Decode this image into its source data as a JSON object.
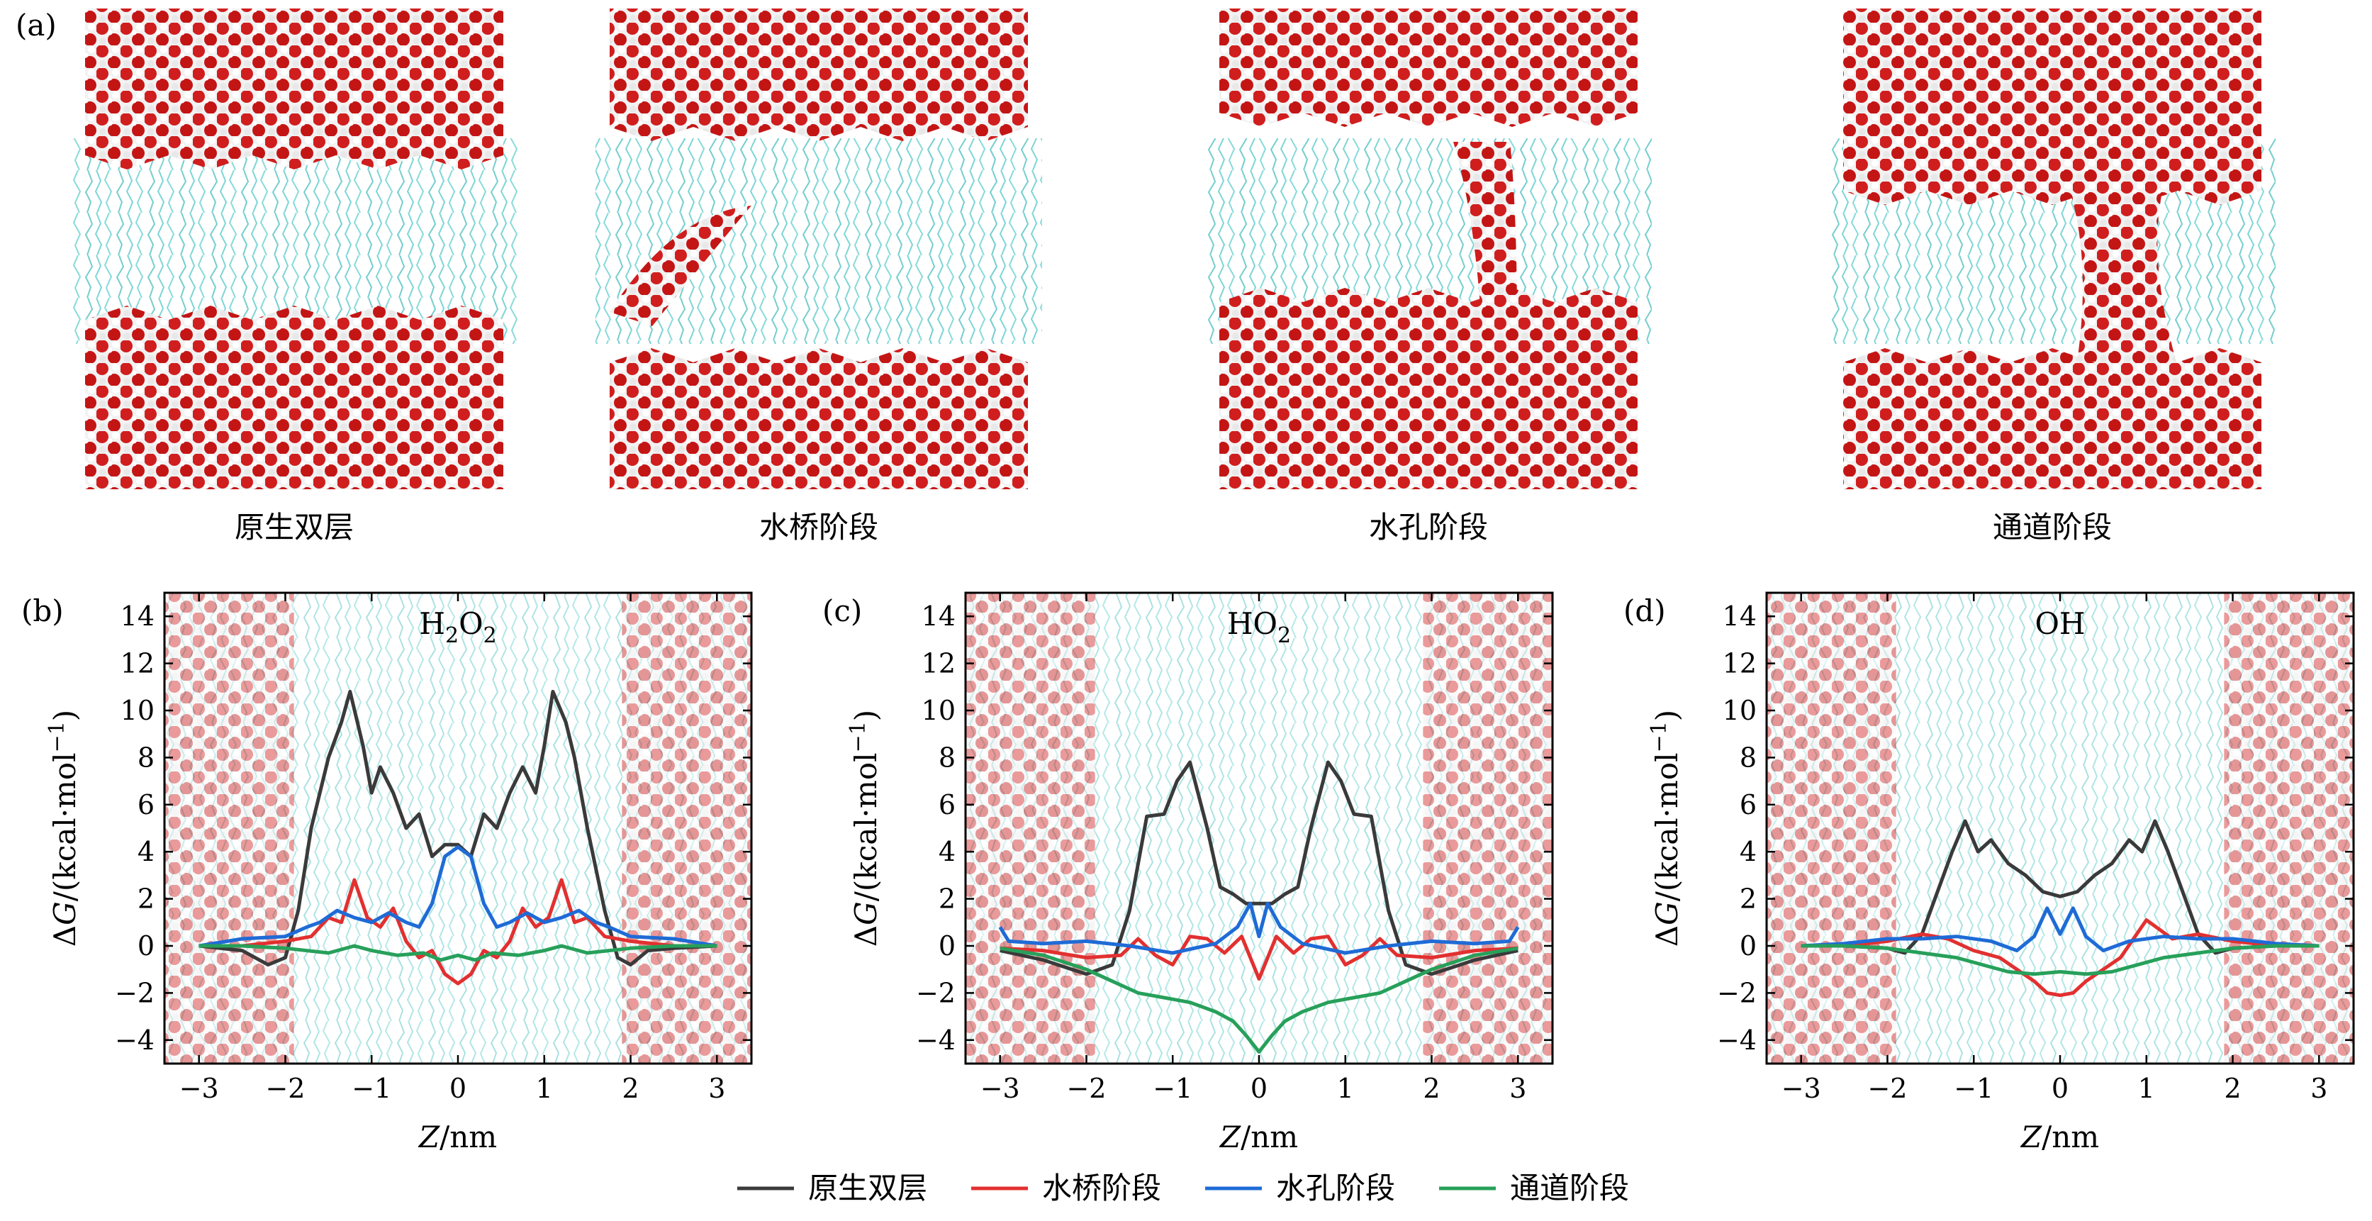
{
  "panel_letters": [
    "(a)",
    "(b)",
    "(c)",
    "(d)"
  ],
  "snapshots": {
    "captions": [
      "原生双层",
      "水桥阶段",
      "水孔阶段",
      "通道阶段"
    ],
    "stages": [
      "native",
      "bridge",
      "pore",
      "channel"
    ],
    "colors": {
      "water_oxygen": "#d01e1e",
      "water_hydrogen": "#f2f2f2",
      "lipid_tails": "#6fd0d0"
    }
  },
  "legend": {
    "placement": "bottom-center",
    "entries": [
      {
        "label": "原生双层",
        "color": "#3a3a3a"
      },
      {
        "label": "水桥阶段",
        "color": "#e23030"
      },
      {
        "label": "水孔阶段",
        "color": "#1f6bd6"
      },
      {
        "label": "通道阶段",
        "color": "#27a05a"
      }
    ]
  },
  "chart_data": [
    {
      "type": "line",
      "panel": "(b)",
      "title": "H2O2",
      "xlabel": "Z/nm",
      "ylabel": "ΔG/(kcal·mol−1)",
      "xlim": [
        -3.4,
        3.4
      ],
      "ylim": [
        -5,
        15
      ],
      "xticks": [
        -3,
        -2,
        -1,
        0,
        1,
        2,
        3
      ],
      "yticks": [
        -4,
        -2,
        0,
        2,
        4,
        6,
        8,
        10,
        12,
        14
      ],
      "xticklabels": [
        "−3",
        "−2",
        "−1",
        "0",
        "1",
        "2",
        "3"
      ],
      "yticklabels": [
        "−4",
        "−2",
        "0",
        "2",
        "4",
        "6",
        "8",
        "10",
        "12",
        "14"
      ],
      "grid": false,
      "series": [
        {
          "name": "原生双层",
          "color": "#3a3a3a",
          "x": [
            -3.0,
            -2.5,
            -2.2,
            -2.0,
            -1.85,
            -1.7,
            -1.5,
            -1.35,
            -1.25,
            -1.1,
            -1.0,
            -0.9,
            -0.75,
            -0.6,
            -0.45,
            -0.3,
            -0.15,
            0.0,
            0.15,
            0.3,
            0.45,
            0.6,
            0.75,
            0.9,
            1.0,
            1.1,
            1.25,
            1.35,
            1.5,
            1.7,
            1.85,
            2.0,
            2.2,
            2.5,
            3.0
          ],
          "y": [
            0.0,
            -0.2,
            -0.8,
            -0.5,
            1.5,
            5.0,
            8.0,
            9.5,
            10.8,
            8.5,
            6.5,
            7.6,
            6.5,
            5.0,
            5.6,
            3.8,
            4.3,
            4.3,
            3.8,
            5.6,
            5.0,
            6.5,
            7.6,
            6.5,
            8.5,
            10.8,
            9.5,
            8.0,
            5.0,
            1.5,
            -0.5,
            -0.8,
            -0.2,
            -0.1,
            0.0
          ]
        },
        {
          "name": "水桥阶段",
          "color": "#e23030",
          "x": [
            -3.0,
            -2.5,
            -2.0,
            -1.7,
            -1.5,
            -1.35,
            -1.2,
            -1.05,
            -0.9,
            -0.75,
            -0.6,
            -0.45,
            -0.3,
            -0.15,
            0.0,
            0.15,
            0.3,
            0.45,
            0.6,
            0.75,
            0.9,
            1.05,
            1.2,
            1.35,
            1.5,
            1.7,
            2.0,
            2.5,
            3.0
          ],
          "y": [
            0.0,
            0.0,
            0.2,
            0.4,
            1.2,
            1.0,
            2.8,
            1.2,
            0.8,
            1.6,
            0.2,
            -0.5,
            -0.2,
            -1.2,
            -1.6,
            -1.2,
            -0.2,
            -0.5,
            0.2,
            1.6,
            0.8,
            1.2,
            2.8,
            1.0,
            1.2,
            0.4,
            0.2,
            0.0,
            0.0
          ]
        },
        {
          "name": "水孔阶段",
          "color": "#1f6bd6",
          "x": [
            -3.0,
            -2.5,
            -2.0,
            -1.75,
            -1.6,
            -1.4,
            -1.2,
            -1.0,
            -0.8,
            -0.6,
            -0.45,
            -0.3,
            -0.15,
            0.0,
            0.15,
            0.3,
            0.45,
            0.6,
            0.8,
            1.0,
            1.2,
            1.4,
            1.6,
            1.75,
            2.0,
            2.5,
            3.0
          ],
          "y": [
            0.0,
            0.3,
            0.4,
            0.8,
            1.0,
            1.5,
            1.2,
            1.0,
            1.4,
            1.0,
            0.8,
            1.8,
            3.8,
            4.2,
            3.8,
            1.8,
            0.8,
            1.0,
            1.4,
            1.0,
            1.2,
            1.5,
            1.0,
            0.8,
            0.4,
            0.3,
            0.0
          ]
        },
        {
          "name": "通道阶段",
          "color": "#27a05a",
          "x": [
            -3.0,
            -2.5,
            -2.0,
            -1.5,
            -1.2,
            -1.0,
            -0.7,
            -0.4,
            -0.2,
            0.0,
            0.2,
            0.4,
            0.7,
            1.0,
            1.2,
            1.5,
            2.0,
            2.5,
            3.0
          ],
          "y": [
            0.0,
            0.0,
            -0.1,
            -0.3,
            0.0,
            -0.2,
            -0.4,
            -0.3,
            -0.6,
            -0.4,
            -0.6,
            -0.3,
            -0.4,
            -0.2,
            0.0,
            -0.3,
            -0.1,
            0.0,
            0.0
          ]
        }
      ]
    },
    {
      "type": "line",
      "panel": "(c)",
      "title": "HO2",
      "xlabel": "Z/nm",
      "ylabel": "ΔG/(kcal·mol−1)",
      "xlim": [
        -3.4,
        3.4
      ],
      "ylim": [
        -5,
        15
      ],
      "xticks": [
        -3,
        -2,
        -1,
        0,
        1,
        2,
        3
      ],
      "yticks": [
        -4,
        -2,
        0,
        2,
        4,
        6,
        8,
        10,
        12,
        14
      ],
      "xticklabels": [
        "−3",
        "−2",
        "−1",
        "0",
        "1",
        "2",
        "3"
      ],
      "yticklabels": [
        "−4",
        "−2",
        "0",
        "2",
        "4",
        "6",
        "8",
        "10",
        "12",
        "14"
      ],
      "grid": false,
      "series": [
        {
          "name": "原生双层",
          "color": "#3a3a3a",
          "x": [
            -3.0,
            -2.5,
            -2.0,
            -1.7,
            -1.5,
            -1.3,
            -1.1,
            -0.95,
            -0.8,
            -0.6,
            -0.45,
            -0.3,
            -0.15,
            0.0,
            0.15,
            0.3,
            0.45,
            0.6,
            0.8,
            0.95,
            1.1,
            1.3,
            1.5,
            1.7,
            2.0,
            2.5,
            3.0
          ],
          "y": [
            -0.2,
            -0.6,
            -1.2,
            -0.8,
            1.5,
            5.5,
            5.6,
            7.0,
            7.8,
            5.0,
            2.5,
            2.2,
            1.8,
            1.8,
            1.8,
            2.2,
            2.5,
            5.0,
            7.8,
            7.0,
            5.6,
            5.5,
            1.5,
            -0.8,
            -1.2,
            -0.6,
            -0.2
          ]
        },
        {
          "name": "水桥阶段",
          "color": "#e23030",
          "x": [
            -3.0,
            -2.5,
            -2.0,
            -1.6,
            -1.4,
            -1.2,
            -1.0,
            -0.8,
            -0.6,
            -0.4,
            -0.2,
            0.0,
            0.2,
            0.4,
            0.6,
            0.8,
            1.0,
            1.2,
            1.4,
            1.6,
            2.0,
            2.5,
            3.0
          ],
          "y": [
            -0.1,
            -0.2,
            -0.5,
            -0.4,
            0.3,
            -0.4,
            -0.8,
            0.4,
            0.3,
            -0.3,
            0.4,
            -1.4,
            0.4,
            -0.3,
            0.3,
            0.4,
            -0.8,
            -0.4,
            0.3,
            -0.4,
            -0.5,
            -0.2,
            -0.1
          ]
        },
        {
          "name": "水孔阶段",
          "color": "#1f6bd6",
          "x": [
            -3.0,
            -2.9,
            -2.5,
            -2.0,
            -1.5,
            -1.0,
            -0.5,
            -0.25,
            -0.1,
            0.0,
            0.1,
            0.25,
            0.5,
            1.0,
            1.5,
            2.0,
            2.5,
            2.9,
            3.0
          ],
          "y": [
            0.8,
            0.2,
            0.1,
            0.2,
            0.0,
            -0.3,
            0.1,
            0.8,
            1.8,
            0.4,
            1.8,
            0.8,
            0.1,
            -0.3,
            0.0,
            0.2,
            0.1,
            0.2,
            0.8
          ]
        },
        {
          "name": "通道阶段",
          "color": "#27a05a",
          "x": [
            -3.0,
            -2.5,
            -2.0,
            -1.7,
            -1.4,
            -1.1,
            -0.8,
            -0.5,
            -0.3,
            -0.15,
            0.0,
            0.15,
            0.3,
            0.5,
            0.8,
            1.1,
            1.4,
            1.7,
            2.0,
            2.5,
            3.0
          ],
          "y": [
            -0.1,
            -0.4,
            -1.0,
            -1.5,
            -2.0,
            -2.2,
            -2.4,
            -2.8,
            -3.2,
            -3.8,
            -4.5,
            -3.8,
            -3.2,
            -2.8,
            -2.4,
            -2.2,
            -2.0,
            -1.5,
            -1.0,
            -0.4,
            -0.1
          ]
        }
      ]
    },
    {
      "type": "line",
      "panel": "(d)",
      "title": "OH",
      "xlabel": "Z/nm",
      "ylabel": "ΔG/(kcal·mol−1)",
      "xlim": [
        -3.4,
        3.4
      ],
      "ylim": [
        -5,
        15
      ],
      "xticks": [
        -3,
        -2,
        -1,
        0,
        1,
        2,
        3
      ],
      "yticks": [
        -4,
        -2,
        0,
        2,
        4,
        6,
        8,
        10,
        12,
        14
      ],
      "xticklabels": [
        "−3",
        "−2",
        "−1",
        "0",
        "1",
        "2",
        "3"
      ],
      "yticklabels": [
        "−4",
        "−2",
        "0",
        "2",
        "4",
        "6",
        "8",
        "10",
        "12",
        "14"
      ],
      "grid": false,
      "series": [
        {
          "name": "原生双层",
          "color": "#3a3a3a",
          "x": [
            -3.0,
            -2.5,
            -2.0,
            -1.8,
            -1.6,
            -1.4,
            -1.25,
            -1.1,
            -0.95,
            -0.8,
            -0.6,
            -0.4,
            -0.2,
            0.0,
            0.2,
            0.4,
            0.6,
            0.8,
            0.95,
            1.1,
            1.25,
            1.4,
            1.6,
            1.8,
            2.0,
            2.5,
            3.0
          ],
          "y": [
            0.0,
            0.0,
            -0.1,
            -0.3,
            0.5,
            2.5,
            4.0,
            5.3,
            4.0,
            4.5,
            3.5,
            3.0,
            2.3,
            2.1,
            2.3,
            3.0,
            3.5,
            4.5,
            4.0,
            5.3,
            4.0,
            2.5,
            0.5,
            -0.3,
            -0.1,
            0.0,
            0.0
          ]
        },
        {
          "name": "水桥阶段",
          "color": "#e23030",
          "x": [
            -3.0,
            -2.5,
            -2.0,
            -1.6,
            -1.3,
            -1.0,
            -0.7,
            -0.5,
            -0.3,
            -0.15,
            0.0,
            0.15,
            0.3,
            0.5,
            0.7,
            1.0,
            1.3,
            1.6,
            2.0,
            2.5,
            3.0
          ],
          "y": [
            0.0,
            0.0,
            0.2,
            0.5,
            0.3,
            -0.2,
            -0.5,
            -1.0,
            -1.5,
            -2.0,
            -2.1,
            -2.0,
            -1.5,
            -1.0,
            -0.5,
            1.1,
            0.3,
            0.5,
            0.2,
            0.0,
            0.0
          ]
        },
        {
          "name": "水孔阶段",
          "color": "#1f6bd6",
          "x": [
            -3.0,
            -2.5,
            -2.0,
            -1.6,
            -1.2,
            -0.8,
            -0.5,
            -0.3,
            -0.15,
            0.0,
            0.15,
            0.3,
            0.5,
            0.8,
            1.2,
            1.6,
            2.0,
            2.5,
            3.0
          ],
          "y": [
            0.0,
            0.1,
            0.3,
            0.3,
            0.4,
            0.2,
            -0.2,
            0.4,
            1.6,
            0.5,
            1.6,
            0.4,
            -0.2,
            0.2,
            0.4,
            0.3,
            0.3,
            0.1,
            0.0
          ]
        },
        {
          "name": "通道阶段",
          "color": "#27a05a",
          "x": [
            -3.0,
            -2.5,
            -2.0,
            -1.6,
            -1.2,
            -0.9,
            -0.6,
            -0.3,
            0.0,
            0.3,
            0.6,
            0.9,
            1.2,
            1.6,
            2.0,
            2.5,
            3.0
          ],
          "y": [
            0.0,
            0.0,
            -0.1,
            -0.3,
            -0.5,
            -0.8,
            -1.1,
            -1.2,
            -1.1,
            -1.2,
            -1.1,
            -0.8,
            -0.5,
            -0.3,
            -0.1,
            0.0,
            0.0
          ]
        }
      ]
    }
  ]
}
